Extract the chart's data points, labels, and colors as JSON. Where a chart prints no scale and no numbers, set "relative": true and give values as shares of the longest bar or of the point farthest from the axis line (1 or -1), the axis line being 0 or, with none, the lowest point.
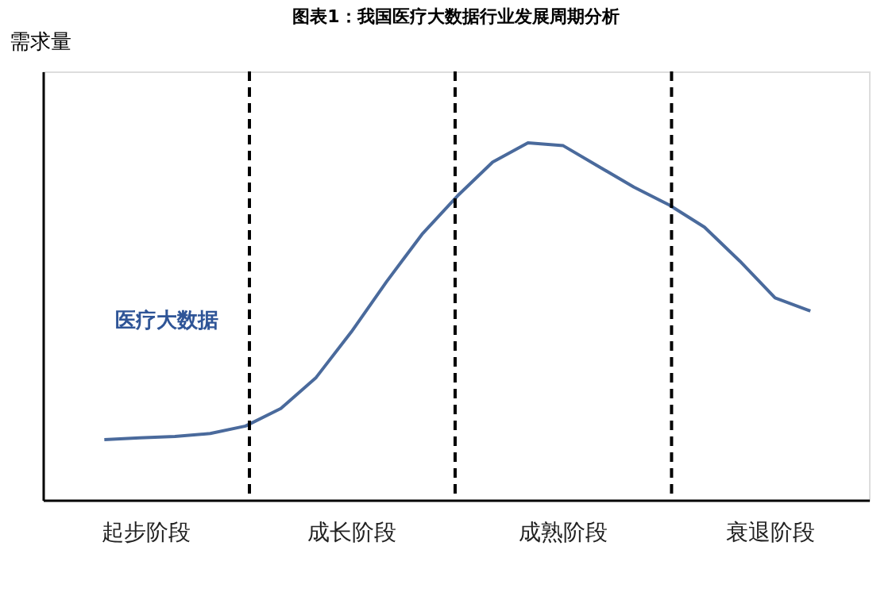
{
  "chart_data": {
    "type": "line",
    "title": "图表1：我国医疗大数据行业发展周期分析",
    "ylabel": "需求量",
    "relative": true,
    "tick_labels": false,
    "grid": false,
    "marker": "none",
    "line_style": "solid",
    "categories": [
      null,
      null,
      null,
      null,
      null,
      null,
      null,
      null,
      null,
      null,
      null,
      null,
      null,
      null,
      null,
      null,
      null,
      null,
      null,
      null,
      null
    ],
    "series": [
      {
        "color": "#4a6a9c",
        "values": [
          0.169,
          0.174,
          0.178,
          0.186,
          0.207,
          0.256,
          0.343,
          0.471,
          0.612,
          0.744,
          0.851,
          0.946,
          1.0,
          0.992,
          0.934,
          0.876,
          0.826,
          0.764,
          0.669,
          0.566,
          0.529
        ]
      }
    ],
    "annotations": [
      "起步阶段",
      "成长阶段",
      "成熟阶段",
      "衰退阶段",
      "医疗大数据"
    ]
  }
}
